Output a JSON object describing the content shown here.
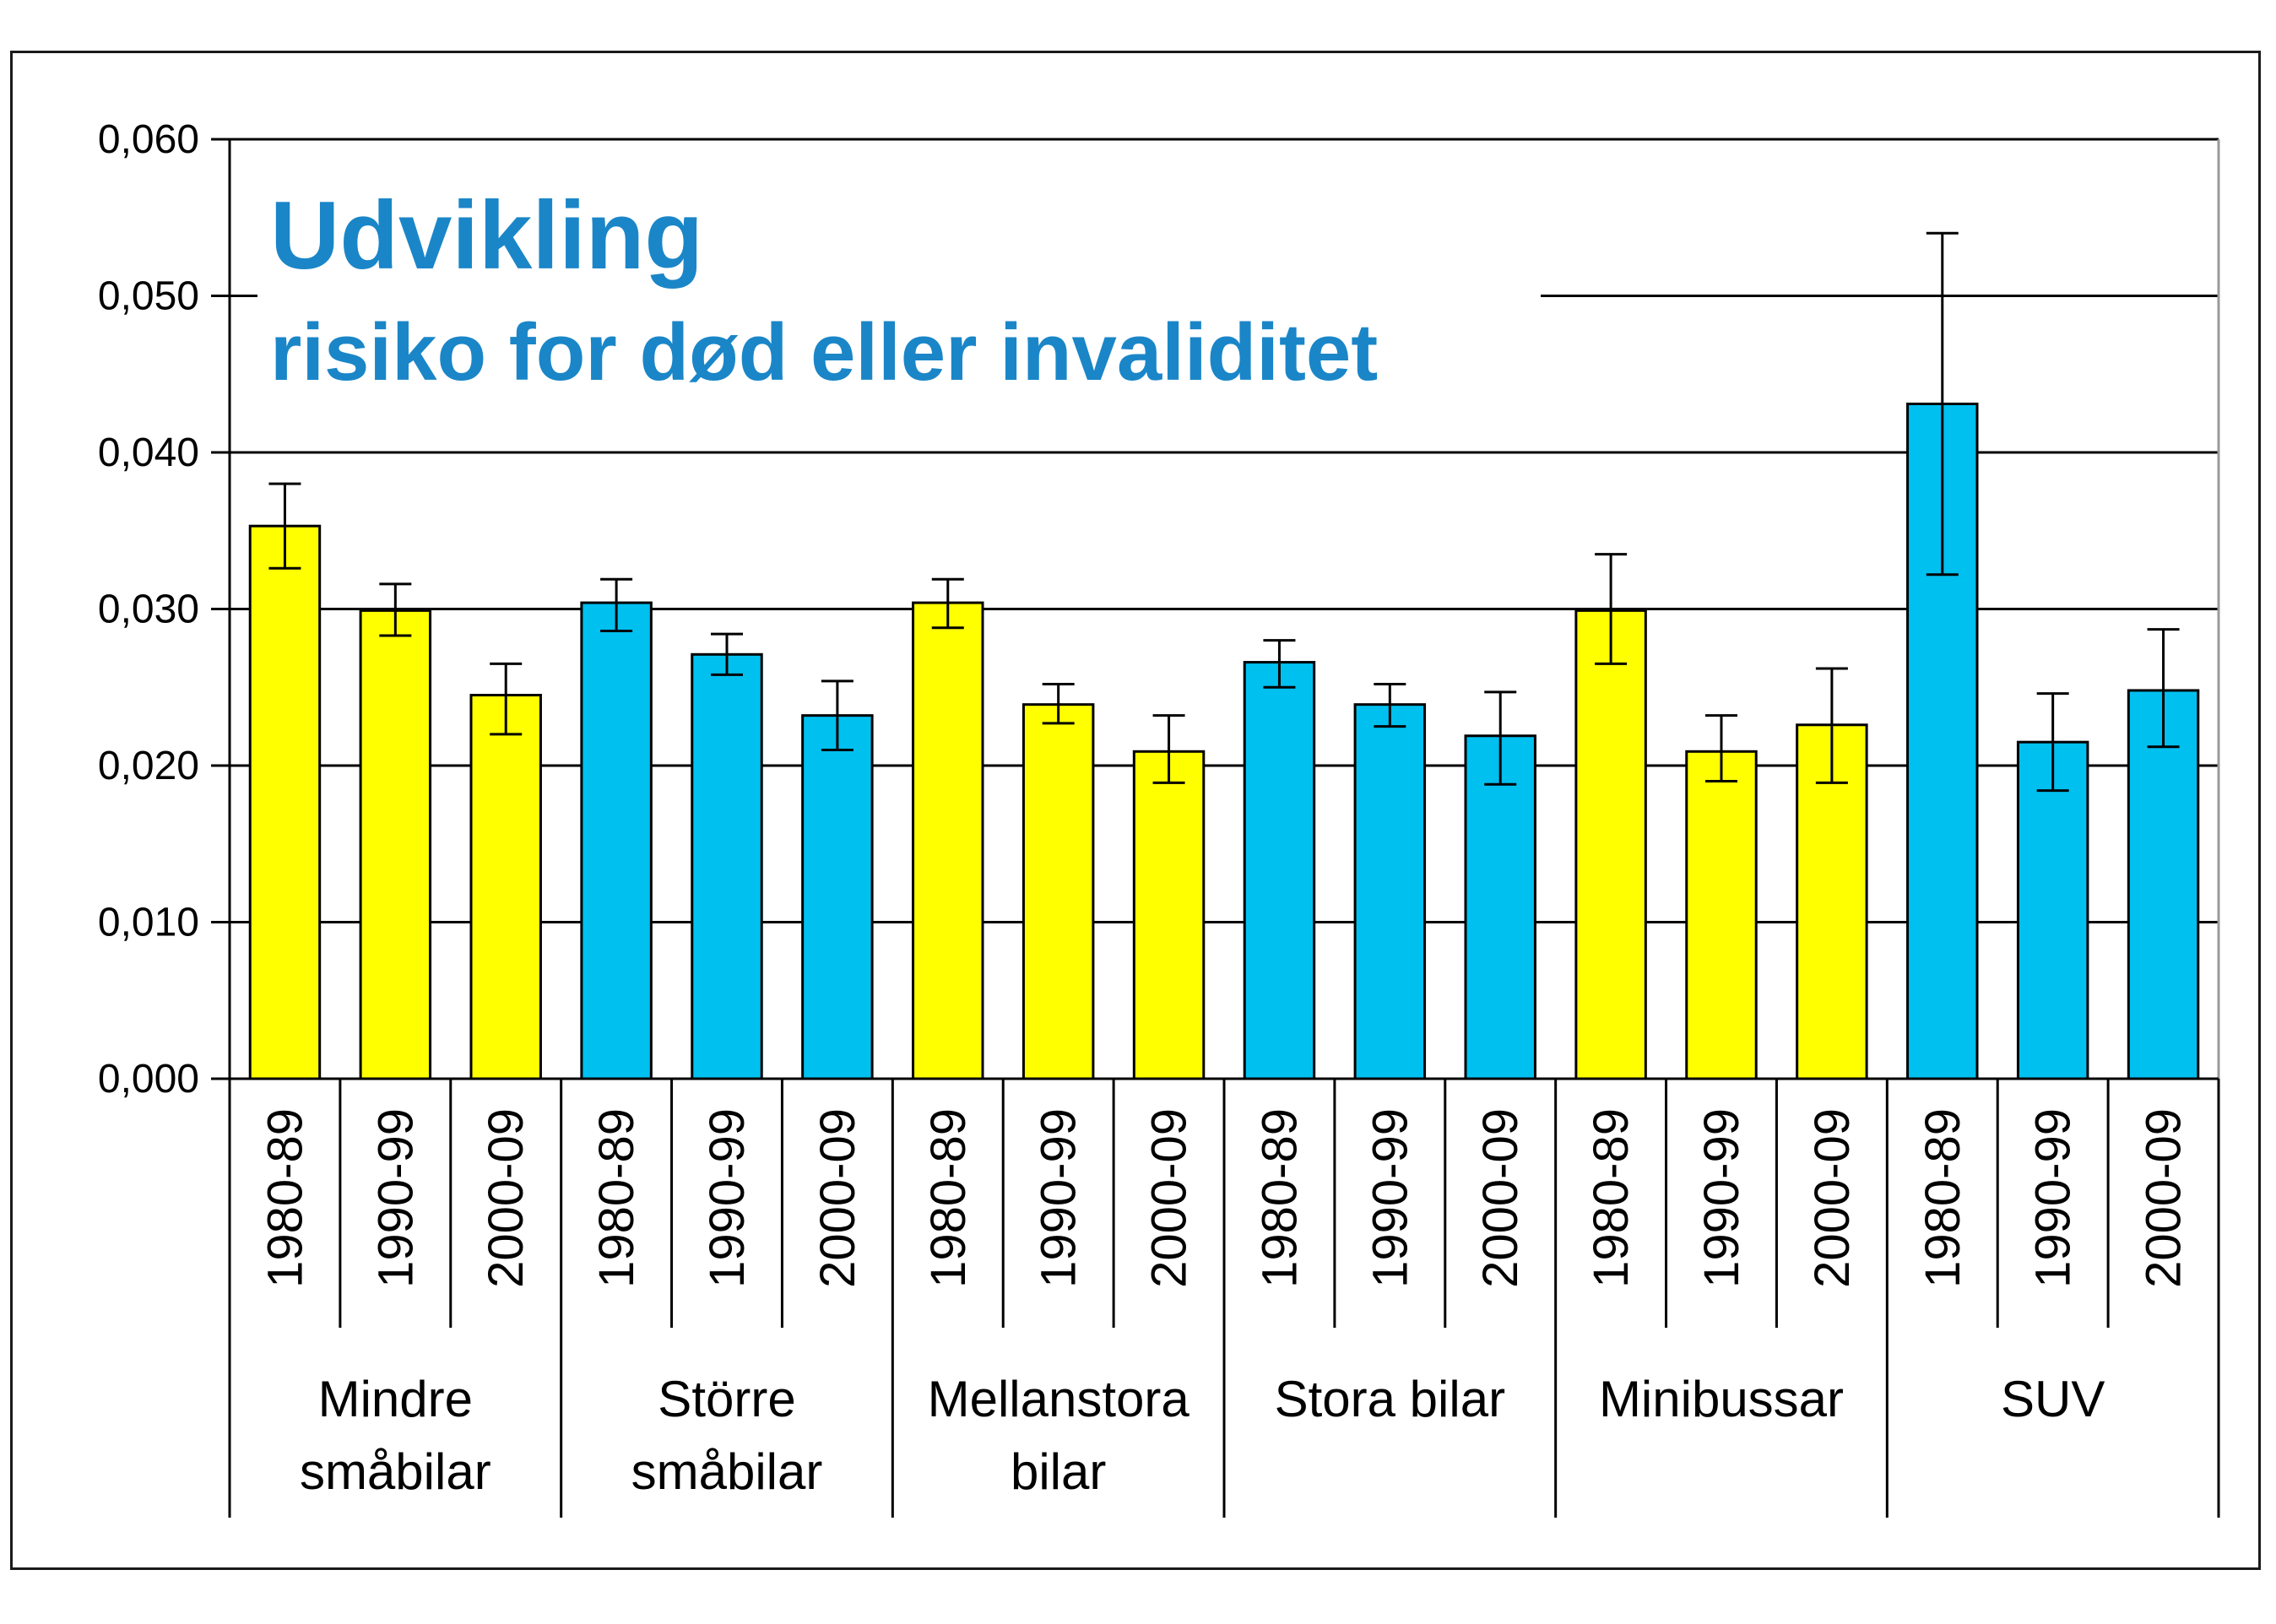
{
  "chart_data": {
    "type": "bar",
    "title": "Udvikling",
    "subtitle": "risiko for død eller invaliditet",
    "ylim": [
      0,
      0.06
    ],
    "yticks": [
      "0,000",
      "0,010",
      "0,020",
      "0,030",
      "0,040",
      "0,050",
      "0,060"
    ],
    "ytick_values": [
      0,
      0.01,
      0.02,
      0.03,
      0.04,
      0.05,
      0.06
    ],
    "grid": true,
    "colors": {
      "yellow": "#ffff00",
      "blue": "#00c0f0",
      "title": "#1a86c8"
    },
    "groups": [
      {
        "name_lines": [
          "Mindre",
          "småbilar"
        ],
        "color": "yellow",
        "bars": [
          {
            "period": "1980-89",
            "value": 0.0353,
            "err_low": 0.0326,
            "err_high": 0.038
          },
          {
            "period": "1990-99",
            "value": 0.0299,
            "err_low": 0.0283,
            "err_high": 0.0316
          },
          {
            "period": "2000-09",
            "value": 0.0245,
            "err_low": 0.022,
            "err_high": 0.0265
          }
        ]
      },
      {
        "name_lines": [
          "Större",
          "småbilar"
        ],
        "color": "blue",
        "bars": [
          {
            "period": "1980-89",
            "value": 0.0304,
            "err_low": 0.0286,
            "err_high": 0.0319
          },
          {
            "period": "1990-99",
            "value": 0.0271,
            "err_low": 0.0258,
            "err_high": 0.0284
          },
          {
            "period": "2000-09",
            "value": 0.0232,
            "err_low": 0.021,
            "err_high": 0.0254
          }
        ]
      },
      {
        "name_lines": [
          "Mellanstora",
          "bilar"
        ],
        "color": "yellow",
        "bars": [
          {
            "period": "1980-89",
            "value": 0.0304,
            "err_low": 0.0288,
            "err_high": 0.0319
          },
          {
            "period": "1990-99",
            "value": 0.0239,
            "err_low": 0.0227,
            "err_high": 0.0252
          },
          {
            "period": "2000-09",
            "value": 0.0209,
            "err_low": 0.0189,
            "err_high": 0.0232
          }
        ]
      },
      {
        "name_lines": [
          "Stora bilar"
        ],
        "color": "blue",
        "bars": [
          {
            "period": "1980-89",
            "value": 0.0266,
            "err_low": 0.025,
            "err_high": 0.028
          },
          {
            "period": "1990-99",
            "value": 0.0239,
            "err_low": 0.0225,
            "err_high": 0.0252
          },
          {
            "period": "2000-09",
            "value": 0.0219,
            "err_low": 0.0188,
            "err_high": 0.0247
          }
        ]
      },
      {
        "name_lines": [
          "Minibussar"
        ],
        "color": "yellow",
        "bars": [
          {
            "period": "1980-89",
            "value": 0.0299,
            "err_low": 0.0265,
            "err_high": 0.0335
          },
          {
            "period": "1990-99",
            "value": 0.0209,
            "err_low": 0.019,
            "err_high": 0.0232
          },
          {
            "period": "2000-09",
            "value": 0.0226,
            "err_low": 0.0189,
            "err_high": 0.0262
          }
        ]
      },
      {
        "name_lines": [
          "SUV"
        ],
        "color": "blue",
        "bars": [
          {
            "period": "1980-89",
            "value": 0.0431,
            "err_low": 0.0322,
            "err_high": 0.054
          },
          {
            "period": "1990-99",
            "value": 0.0215,
            "err_low": 0.0184,
            "err_high": 0.0246
          },
          {
            "period": "2000-09",
            "value": 0.0248,
            "err_low": 0.0212,
            "err_high": 0.0287
          }
        ]
      }
    ]
  }
}
